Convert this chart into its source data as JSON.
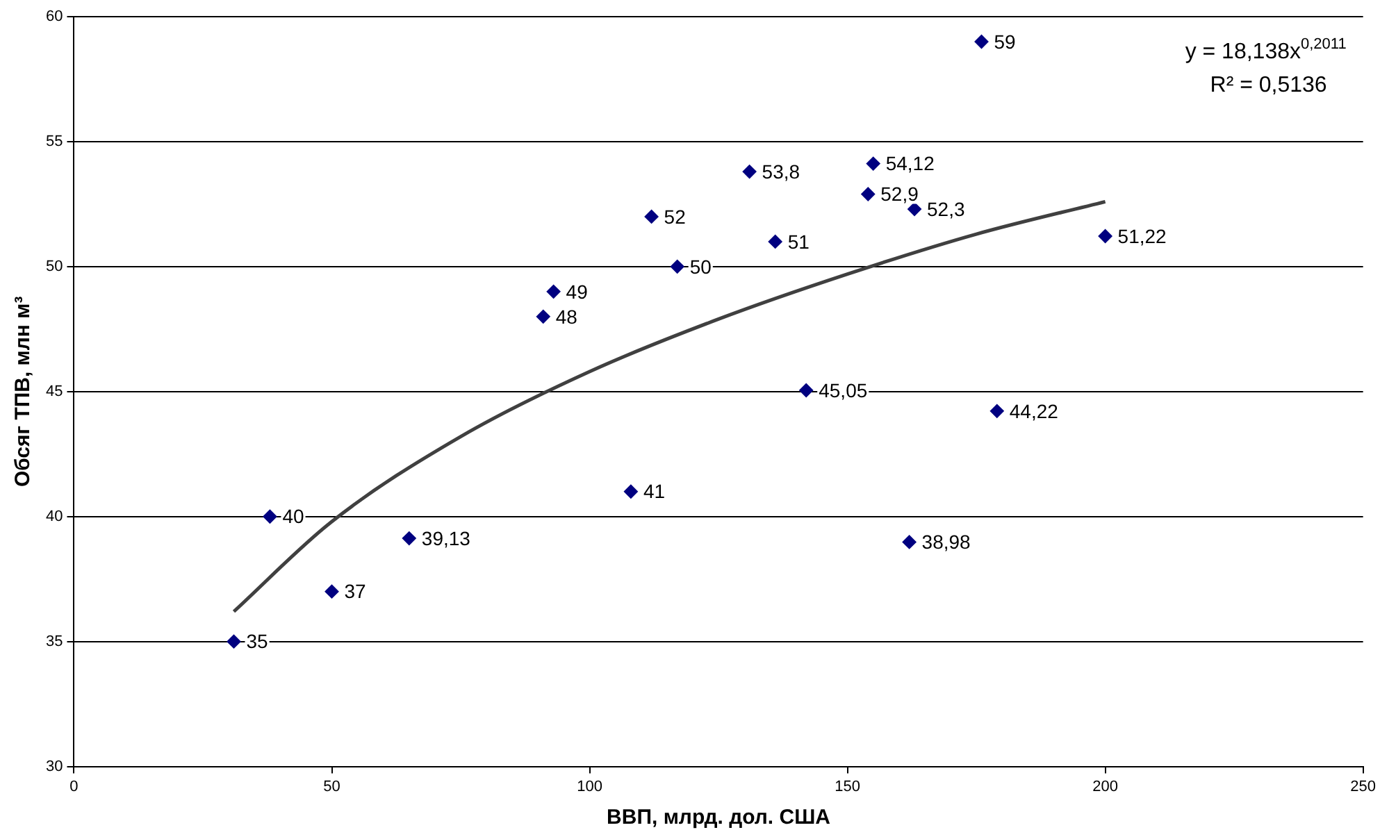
{
  "chart_data": {
    "type": "scatter",
    "xlabel": "ВВП, млрд. дол. США",
    "ylabel": "Обсяг ТПВ, млн м³",
    "xlim": [
      0,
      250
    ],
    "xticks": [
      0,
      50,
      100,
      150,
      200,
      250
    ],
    "ylim": [
      30,
      60
    ],
    "yticks": [
      30,
      35,
      40,
      45,
      50,
      55,
      60
    ],
    "grid": "y",
    "legend": false,
    "annotations": [
      "y = 18,138x$^{0,2011}$",
      "R² = 0,5136"
    ],
    "series": [
      {
        "color": "#000080",
        "marker": "diamond",
        "x": [
          31,
          38,
          50,
          65,
          91,
          93,
          112,
          117,
          131,
          136,
          142,
          154,
          155,
          163,
          176,
          179,
          162,
          108,
          200
        ],
        "values": [
          35,
          40,
          37,
          39.13,
          48,
          49,
          52,
          50,
          53.8,
          51,
          45.05,
          52.9,
          54.12,
          52.3,
          59,
          44.22,
          38.98,
          41,
          51.22
        ],
        "value_labels": [
          "35",
          "40",
          "37",
          "39,13",
          "48",
          "49",
          "52",
          "50",
          "53,8",
          "51",
          "45,05",
          "52,9",
          "54,12",
          "52,3",
          "59",
          "44,22",
          "38,98",
          "41",
          "51,22"
        ]
      },
      {
        "type": "line",
        "color": "#404040",
        "marker": "none",
        "line_style": "solid",
        "x": [
          31,
          50,
          75,
          100,
          125,
          150,
          175,
          200
        ],
        "values": [
          36.2,
          39.8,
          43.2,
          45.8,
          47.9,
          49.7,
          51.3,
          52.6
        ]
      }
    ]
  }
}
